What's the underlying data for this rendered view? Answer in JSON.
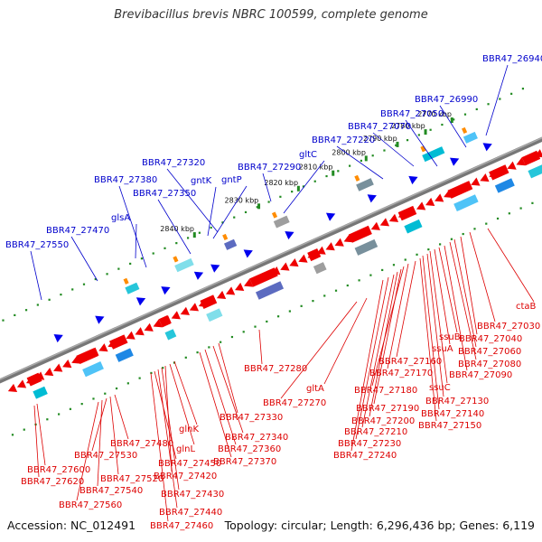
{
  "title": "Brevibacillus brevis NBRC 100599, complete genome",
  "footer": {
    "accession": "Accession: NC_012491",
    "summary": "Topology: circular; Length: 6,296,436 bp; Genes: 6,119"
  },
  "kbp_ticks": [
    "2770 kbp",
    "2780 kbp",
    "2790 kbp",
    "2800 kbp",
    "2810 kbp",
    "2820 kbp",
    "2830 kbp",
    "2840 kbp"
  ],
  "top_genes": [
    "BBR47_26940",
    "BBR47_26990",
    "BBR47_27050",
    "BBR47_27070",
    "BBR47_27220",
    "gltC",
    "BBR47_27290",
    "BBR47_27320",
    "gntK",
    "gntP",
    "BBR47_27350",
    "BBR47_27380",
    "glsA",
    "BBR47_27470",
    "BBR47_27550"
  ],
  "bottom_genes": [
    "ctaB",
    "BBR47_27030",
    "BBR47_27040",
    "BBR47_27060",
    "BBR47_27080",
    "BBR47_27090",
    "ssuB",
    "ssuA",
    "ssuC",
    "BBR47_27130",
    "BBR47_27140",
    "BBR47_27150",
    "BBR47_27160",
    "BBR47_27170",
    "BBR47_27180",
    "BBR47_27190",
    "BBR47_27200",
    "BBR47_27210",
    "BBR47_27230",
    "BBR47_27240",
    "gltA",
    "BBR47_27270",
    "BBR47_27280",
    "BBR47_27330",
    "BBR47_27340",
    "BBR47_27360",
    "BBR47_27370",
    "glnK",
    "glnL",
    "BBR47_27420",
    "BBR47_27430",
    "BBR47_27440",
    "BBR47_27450",
    "BBR47_27460",
    "BBR47_27480",
    "BBR47_27520",
    "BBR47_27530",
    "BBR47_27540",
    "BBR47_27560",
    "BBR47_27600",
    "BBR47_27620"
  ],
  "colors": {
    "forward_label": "#0000cc",
    "reverse_label": "#dd0000",
    "backbone": "#777777",
    "forward_gene": "#0000ee",
    "reverse_gene": "#ee0000",
    "tick": "#228b22"
  }
}
